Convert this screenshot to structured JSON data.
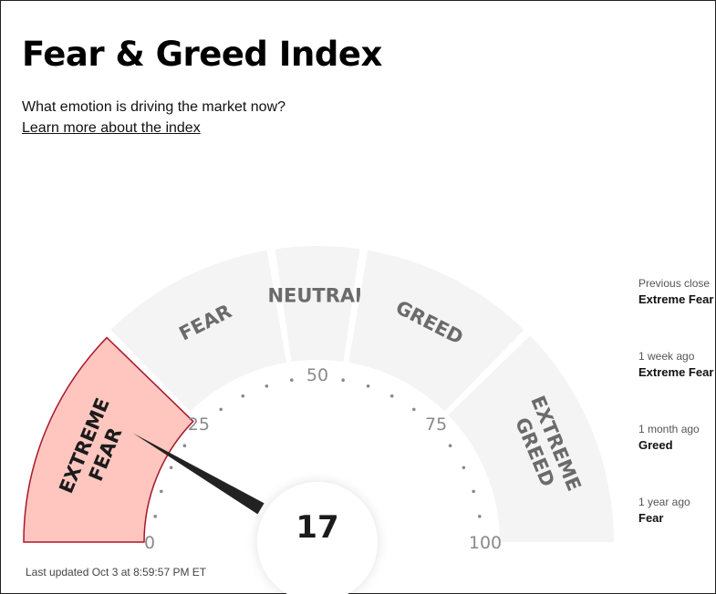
{
  "page": {
    "title": "Fear & Greed Index",
    "subtitle": "What emotion is driving the market now?",
    "learn_more": "Learn more about the index"
  },
  "gauge": {
    "value": 17,
    "value_label": "17",
    "segments": [
      {
        "lines": [
          "EXTREME",
          "FEAR"
        ],
        "range": [
          0,
          25
        ],
        "active": true
      },
      {
        "lines": [
          "FEAR"
        ],
        "range": [
          25,
          45
        ],
        "active": false
      },
      {
        "lines": [
          "NEUTRAL"
        ],
        "range": [
          45,
          55
        ],
        "active": false
      },
      {
        "lines": [
          "GREED"
        ],
        "range": [
          55,
          75
        ],
        "active": false
      },
      {
        "lines": [
          "EXTREME",
          "GREED"
        ],
        "range": [
          75,
          100
        ],
        "active": false
      }
    ],
    "ticks": [
      {
        "value": 0,
        "label": "0"
      },
      {
        "value": 25,
        "label": "25"
      },
      {
        "value": 50,
        "label": "50"
      },
      {
        "value": 75,
        "label": "75"
      },
      {
        "value": 100,
        "label": "100"
      }
    ],
    "colors": {
      "segment_bg": "#f4f4f4",
      "active_fill": "#ffc6bf",
      "active_stroke": "#a8172b",
      "label_text": "#6b6b6b",
      "active_label_text": "#1b1b1b",
      "tick_text": "#8a8a8a",
      "dot": "#8a8a8a",
      "needle": "#222222"
    }
  },
  "history": [
    {
      "label": "Previous close",
      "value": "Extreme Fear"
    },
    {
      "label": "1 week ago",
      "value": "Extreme Fear"
    },
    {
      "label": "1 month ago",
      "value": "Greed"
    },
    {
      "label": "1 year ago",
      "value": "Fear"
    }
  ],
  "last_updated": "Last updated Oct 3 at 8:59:57 PM ET"
}
